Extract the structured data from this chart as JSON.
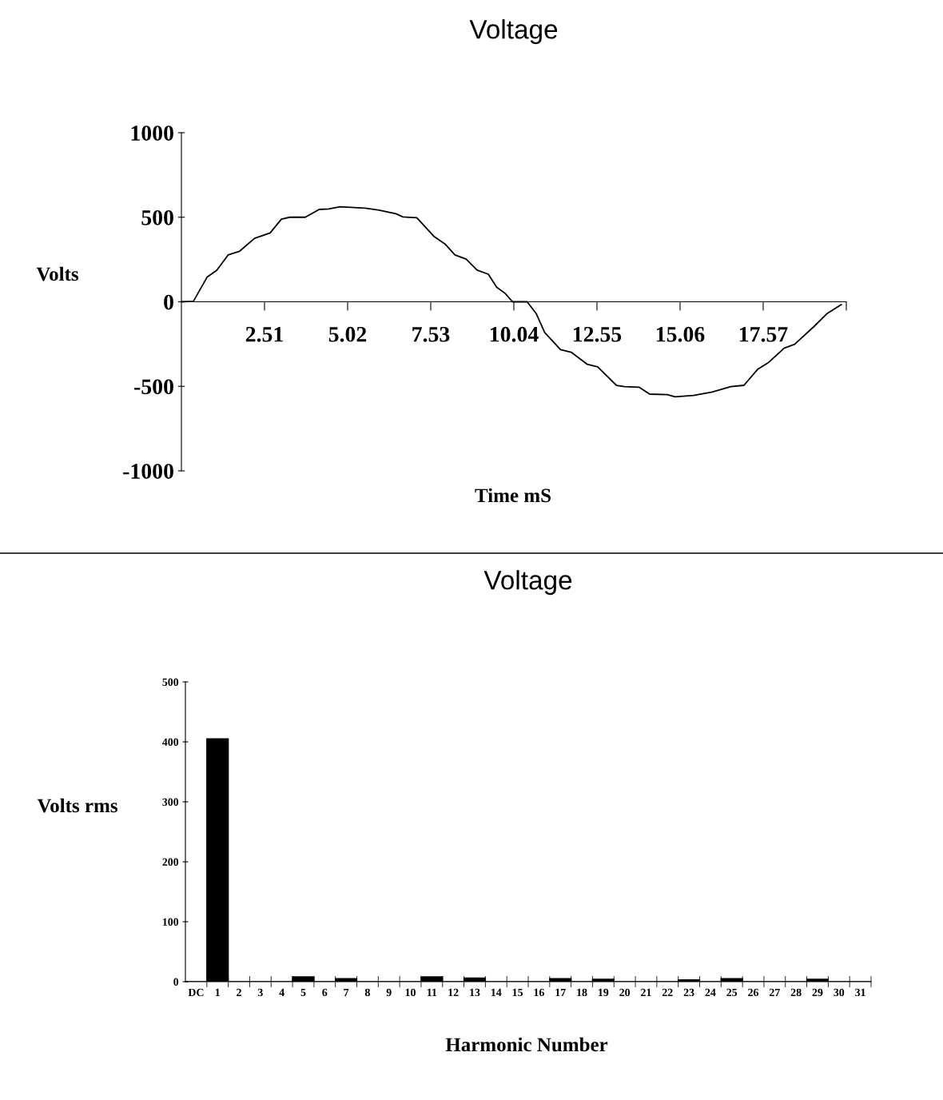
{
  "chart_data": [
    {
      "type": "line",
      "title": "Voltage",
      "xlabel": "Time mS",
      "ylabel": "Volts",
      "color": "#000000",
      "x": [
        0,
        0.36,
        0.4,
        0.78,
        1.07,
        1.41,
        1.75,
        2.21,
        2.68,
        3.02,
        3.27,
        3.74,
        4.16,
        4.45,
        4.79,
        5.55,
        5.97,
        6.48,
        6.69,
        7.11,
        7.62,
        7.96,
        8.26,
        8.6,
        8.93,
        9.27,
        9.52,
        9.78,
        10.0,
        10.44,
        10.72,
        10.97,
        11.45,
        11.77,
        12.25,
        12.57,
        13.14,
        13.38,
        13.82,
        14.14,
        14.67,
        14.91,
        15.47,
        16.03,
        16.59,
        16.99,
        17.4,
        17.72,
        18.2,
        18.52,
        19.09,
        19.49,
        19.93
      ],
      "values": [
        0,
        3,
        16,
        147,
        187,
        277,
        298,
        375,
        407,
        489,
        500,
        500,
        546,
        549,
        562,
        554,
        542,
        521,
        502,
        497,
        388,
        342,
        277,
        252,
        187,
        163,
        86,
        49,
        0,
        0,
        -71,
        -181,
        -283,
        -298,
        -369,
        -385,
        -495,
        -502,
        -505,
        -546,
        -549,
        -562,
        -554,
        -534,
        -502,
        -494,
        -400,
        -361,
        -275,
        -251,
        -149,
        -71,
        -16
      ],
      "xlim": [
        0,
        20.08
      ],
      "xticks": [
        2.51,
        5.02,
        7.53,
        10.04,
        12.55,
        15.06,
        17.57,
        {
          "value": 20.08,
          "label": null
        }
      ],
      "ylim": [
        -1000,
        1000
      ],
      "yticks": [
        -1000,
        -500,
        0,
        500,
        1000
      ],
      "grid": false
    },
    {
      "type": "bar",
      "title": "Voltage",
      "xlabel": "Harmonic Number",
      "ylabel": "Volts rms",
      "color": "#000000",
      "categories": [
        "DC",
        "1",
        "2",
        "3",
        "4",
        "5",
        "6",
        "7",
        "8",
        "9",
        "10",
        "11",
        "12",
        "13",
        "14",
        "15",
        "16",
        "17",
        "18",
        "19",
        "20",
        "21",
        "22",
        "23",
        "24",
        "25",
        "26",
        "27",
        "28",
        "29",
        "30",
        "31"
      ],
      "values": [
        0,
        405,
        0,
        0,
        0,
        8,
        0,
        5,
        0,
        0,
        0,
        8,
        0,
        6,
        0,
        0,
        0,
        5,
        0,
        4,
        0,
        0,
        0,
        3,
        0,
        5,
        0,
        0,
        0,
        4,
        0,
        0
      ],
      "ylim": [
        0,
        500
      ],
      "yticks": [
        0,
        100,
        200,
        300,
        400,
        500
      ],
      "grid": false
    }
  ]
}
